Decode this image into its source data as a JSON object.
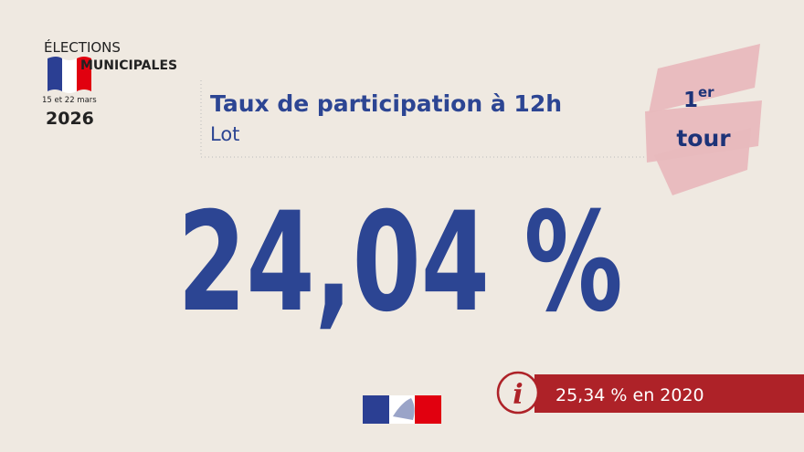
{
  "logo": {
    "line1": "ÉLECTIONS",
    "line2": "MUNICIPALES",
    "dates": "15 et 22 mars",
    "year": "2026"
  },
  "header": {
    "title": "Taux de participation à 12h",
    "subtitle": "Lot"
  },
  "badge": {
    "ordinal": "1",
    "suffix": "er",
    "label": "tour"
  },
  "main": {
    "value": "24,04 %"
  },
  "info": {
    "icon": "i",
    "text": "25,34 % en 2020"
  }
}
